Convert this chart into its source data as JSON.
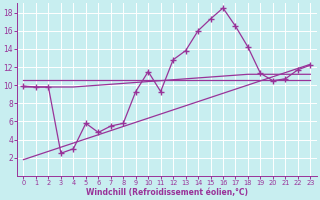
{
  "xlabel": "Windchill (Refroidissement éolien,°C)",
  "bg_color": "#c8eef0",
  "grid_color": "#aadddd",
  "line_color": "#993399",
  "xlim": [
    -0.5,
    23.5
  ],
  "ylim": [
    0,
    19
  ],
  "xticks": [
    0,
    1,
    2,
    3,
    4,
    5,
    6,
    7,
    8,
    9,
    10,
    11,
    12,
    13,
    14,
    15,
    16,
    17,
    18,
    19,
    20,
    21,
    22,
    23
  ],
  "yticks": [
    2,
    4,
    6,
    8,
    10,
    12,
    14,
    16,
    18
  ],
  "series1_x": [
    0,
    1,
    2,
    3,
    4,
    5,
    6,
    7,
    8,
    9,
    10,
    11,
    12,
    13,
    14,
    15,
    16,
    17,
    18,
    19,
    20,
    21,
    22,
    23
  ],
  "series1_y": [
    9.9,
    9.8,
    9.8,
    2.5,
    3.0,
    5.8,
    4.8,
    5.5,
    5.8,
    9.3,
    11.5,
    9.3,
    12.8,
    13.8,
    16.0,
    17.3,
    18.5,
    16.5,
    14.2,
    11.3,
    10.5,
    10.7,
    11.7,
    12.2
  ],
  "series2_x": [
    0,
    23
  ],
  "series2_y": [
    10.6,
    10.6
  ],
  "series3_x": [
    0,
    4,
    18,
    23
  ],
  "series3_y": [
    9.8,
    9.8,
    11.2,
    11.2
  ],
  "series4_x": [
    0,
    23
  ],
  "series4_y": [
    1.8,
    12.3
  ]
}
